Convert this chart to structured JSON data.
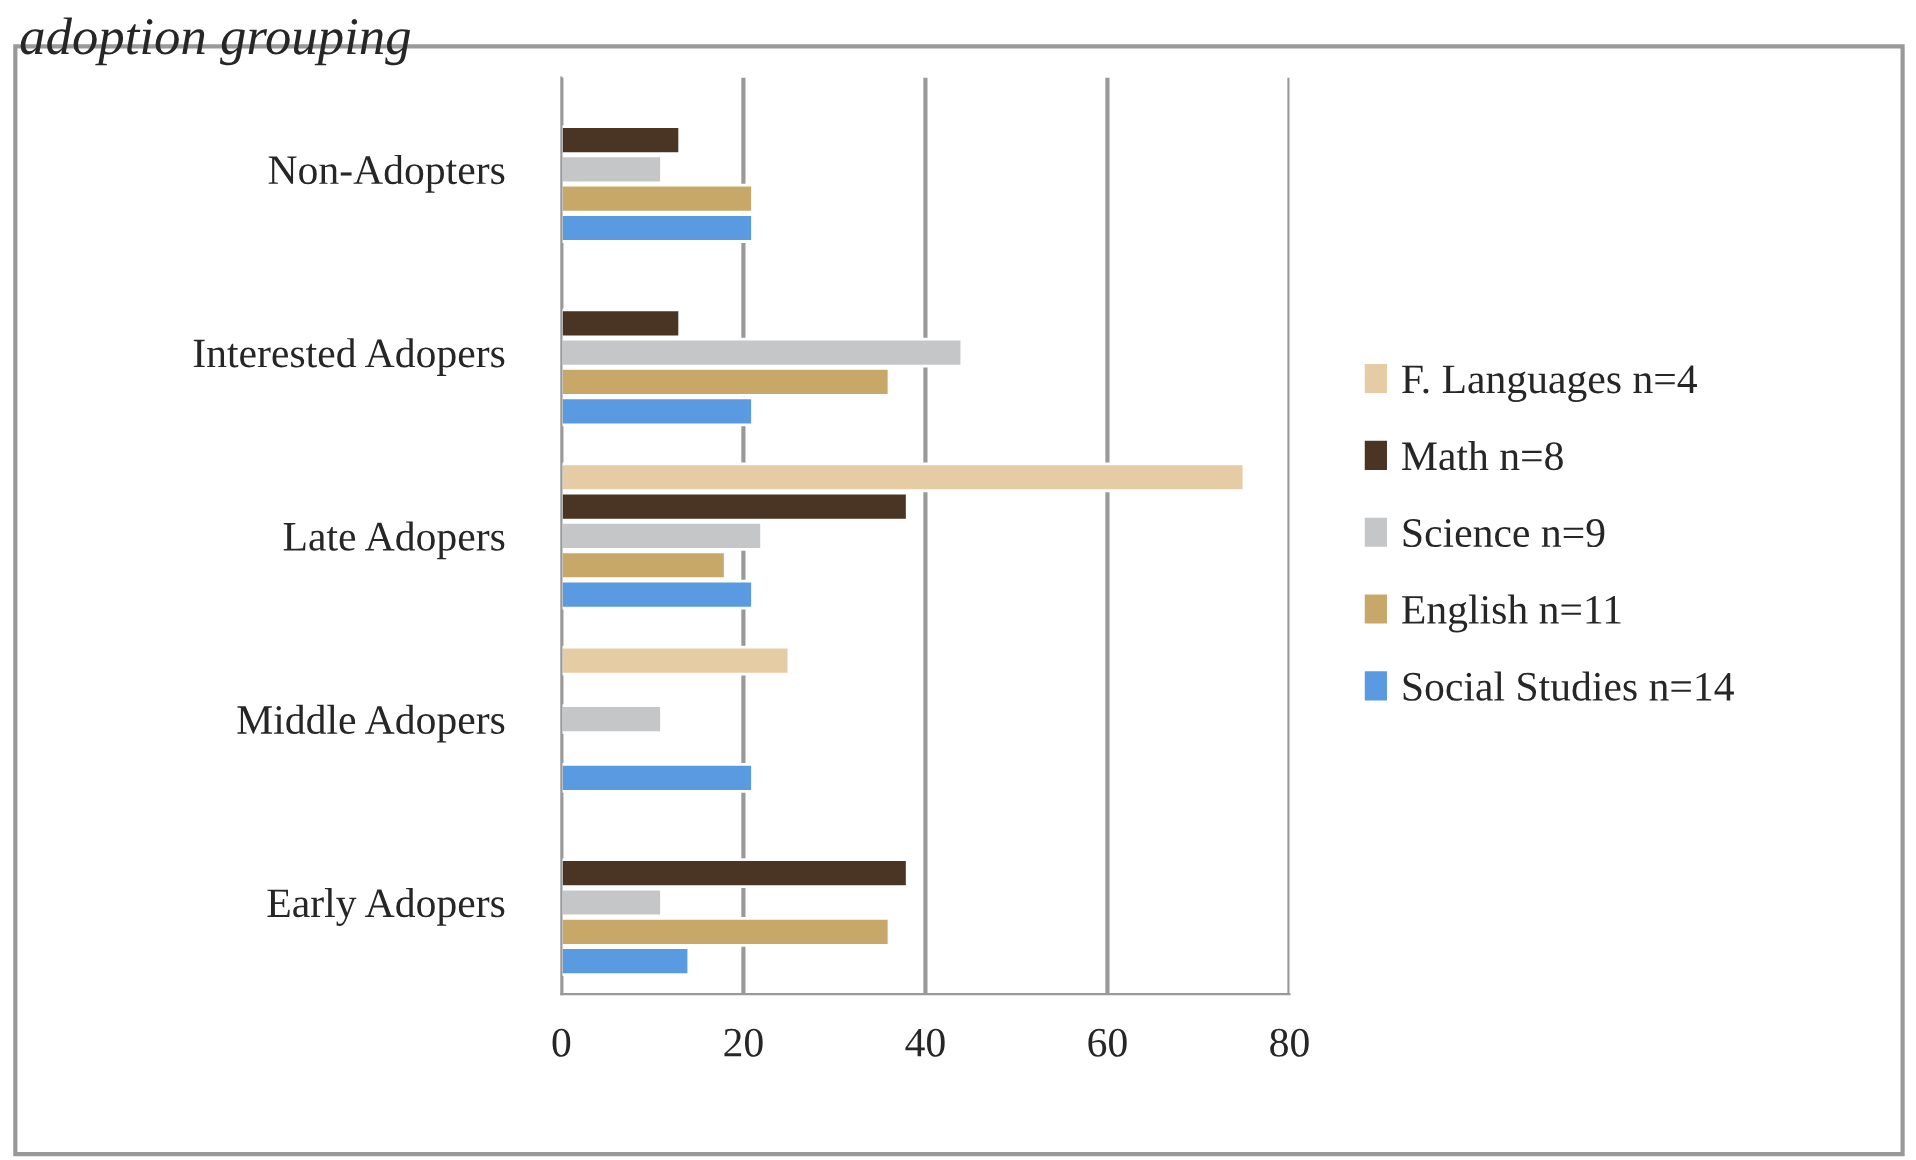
{
  "chart_data": {
    "type": "bar",
    "orientation": "horizontal",
    "title": "adoption grouping",
    "categories": [
      "Non-Adopters",
      "Interested Adopers",
      "Late Adopers",
      "Middle Adopers",
      "Early Adopers"
    ],
    "series": [
      {
        "name": "F. Languages n=4",
        "color": "#e6cca4",
        "values": [
          null,
          null,
          75,
          25,
          null
        ]
      },
      {
        "name": "Math n=8",
        "color": "#4a3424",
        "values": [
          13,
          13,
          38,
          null,
          38
        ]
      },
      {
        "name": "Science n=9",
        "color": "#c4c6c8",
        "values": [
          11,
          44,
          22,
          11,
          11
        ]
      },
      {
        "name": "English n=11",
        "color": "#c8a868",
        "values": [
          21,
          36,
          18,
          null,
          36
        ]
      },
      {
        "name": "Social Studies n=14",
        "color": "#5a9ae0",
        "values": [
          21,
          21,
          21,
          21,
          14
        ]
      }
    ],
    "xlim": [
      0,
      80
    ],
    "xticks": [
      0,
      20,
      40,
      60,
      80
    ],
    "grid": "x",
    "legend": "right"
  }
}
